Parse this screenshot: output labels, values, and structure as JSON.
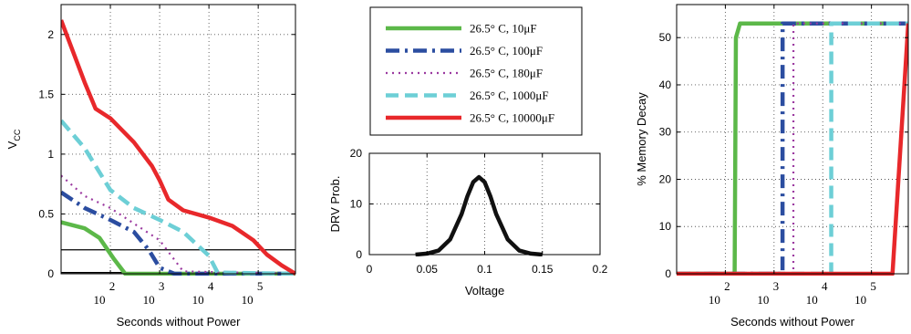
{
  "chart_data": [
    {
      "type": "line",
      "panel": "left",
      "xlabel": "Seconds without Power",
      "ylabel": "V",
      "ylabel_sub": "CC",
      "xscale": "log",
      "xlim": [
        10,
        570000
      ],
      "ylim": [
        0,
        2.25
      ],
      "x_tick_values": [
        100,
        1000,
        10000,
        100000
      ],
      "x_tick_base": "10",
      "x_tick_exponents": [
        "2",
        "3",
        "4",
        "5"
      ],
      "y_ticks": [
        0,
        0.5,
        1,
        1.5,
        2
      ],
      "y_tick_labels": [
        "0",
        "0.5",
        "1",
        "1.5",
        "2"
      ],
      "grid": true,
      "reference_lines": [
        0.2,
        0.01
      ],
      "series": [
        {
          "name": "26.5° C, 10μF",
          "color": "#5cb849",
          "dash": "solid",
          "x": [
            10,
            30,
            60,
            120,
            200,
            300,
            570000
          ],
          "y": [
            0.43,
            0.38,
            0.3,
            0.12,
            0.0,
            0.0,
            0.0
          ]
        },
        {
          "name": "26.5° C, 100μF",
          "color": "#2b4da0",
          "dash": "dashdot",
          "x": [
            10,
            30,
            100,
            300,
            600,
            1000,
            2000,
            570000
          ],
          "y": [
            0.68,
            0.55,
            0.45,
            0.35,
            0.2,
            0.05,
            0.0,
            0.0
          ]
        },
        {
          "name": "26.5° C, 180μF",
          "color": "#9b3aa0",
          "dash": "dotted",
          "x": [
            10,
            30,
            100,
            300,
            1000,
            3000,
            570000
          ],
          "y": [
            0.82,
            0.65,
            0.55,
            0.42,
            0.28,
            0.02,
            0.0
          ]
        },
        {
          "name": "26.5° C, 1000μF",
          "color": "#6dcfd6",
          "dash": "dashed",
          "x": [
            10,
            30,
            100,
            300,
            1000,
            3000,
            10000,
            15000,
            570000
          ],
          "y": [
            1.28,
            1.05,
            0.7,
            0.55,
            0.45,
            0.35,
            0.15,
            0.01,
            0.0
          ]
        },
        {
          "name": "26.5° C, 10000μF",
          "color": "#e8282b",
          "dash": "solid",
          "x": [
            10,
            30,
            50,
            100,
            300,
            700,
            1000,
            1500,
            3000,
            10000,
            30000,
            80000,
            150000,
            300000,
            570000
          ],
          "y": [
            2.12,
            1.6,
            1.38,
            1.3,
            1.1,
            0.9,
            0.78,
            0.62,
            0.53,
            0.47,
            0.4,
            0.28,
            0.16,
            0.07,
            0.0
          ]
        }
      ]
    },
    {
      "type": "line",
      "panel": "middle",
      "xlabel": "Voltage",
      "ylabel": "DRV Prob.",
      "xlim": [
        0,
        0.2
      ],
      "ylim": [
        0,
        20
      ],
      "x_ticks": [
        0,
        0.05,
        0.1,
        0.15,
        0.2
      ],
      "x_tick_labels": [
        "0",
        "0.05",
        "0.1",
        "0.15",
        "0.2"
      ],
      "y_ticks": [
        0,
        10,
        20
      ],
      "y_tick_labels": [
        "0",
        "10",
        "20"
      ],
      "grid": true,
      "series": [
        {
          "color": "#111111",
          "dash": "solid",
          "x": [
            0.04,
            0.05,
            0.06,
            0.07,
            0.08,
            0.085,
            0.09,
            0.095,
            0.1,
            0.105,
            0.11,
            0.12,
            0.13,
            0.14,
            0.15
          ],
          "y": [
            0.0,
            0.2,
            0.8,
            3.0,
            8.0,
            11.5,
            14.3,
            15.3,
            14.3,
            11.5,
            8.0,
            3.0,
            0.8,
            0.2,
            0.0
          ]
        }
      ]
    },
    {
      "type": "line",
      "panel": "right",
      "xlabel": "Seconds without Power",
      "ylabel": "% Memory Decay",
      "xscale": "log",
      "xlim": [
        10,
        570000
      ],
      "ylim": [
        0,
        57
      ],
      "x_tick_values": [
        100,
        1000,
        10000,
        100000
      ],
      "x_tick_base": "10",
      "x_tick_exponents": [
        "2",
        "3",
        "4",
        "5"
      ],
      "y_ticks": [
        0,
        10,
        20,
        30,
        40,
        50
      ],
      "y_tick_labels": [
        "0",
        "10",
        "20",
        "30",
        "40",
        "50"
      ],
      "grid": true,
      "series": [
        {
          "name": "26.5° C, 10μF",
          "color": "#5cb849",
          "dash": "solid",
          "x": [
            10,
            155,
            165,
            200,
            570000
          ],
          "y": [
            0,
            0,
            50,
            53,
            53
          ]
        },
        {
          "name": "26.5° C, 100μF",
          "color": "#2b4da0",
          "dash": "dashdot",
          "x": [
            10,
            1490,
            1500,
            570000
          ],
          "y": [
            0,
            0,
            53,
            53
          ]
        },
        {
          "name": "26.5° C, 180μF",
          "color": "#9b3aa0",
          "dash": "dotted",
          "x": [
            10,
            2490,
            2500,
            570000
          ],
          "y": [
            0,
            0,
            53,
            53
          ]
        },
        {
          "name": "26.5° C, 1000μF",
          "color": "#6dcfd6",
          "dash": "dashed",
          "x": [
            10,
            14900,
            15000,
            570000
          ],
          "y": [
            0,
            0,
            53,
            53
          ]
        },
        {
          "name": "26.5° C, 10000μF",
          "color": "#e8282b",
          "dash": "solid",
          "x": [
            10,
            270000,
            570000
          ],
          "y": [
            0,
            0,
            53
          ]
        }
      ]
    }
  ],
  "legend": {
    "entries": [
      {
        "label": "26.5° C, 10μF",
        "color": "#5cb849",
        "dash": "solid"
      },
      {
        "label": "26.5° C, 100μF",
        "color": "#2b4da0",
        "dash": "dashdot"
      },
      {
        "label": "26.5° C, 180μF",
        "color": "#9b3aa0",
        "dash": "dotted"
      },
      {
        "label": "26.5° C, 1000μF",
        "color": "#6dcfd6",
        "dash": "dashed"
      },
      {
        "label": "26.5° C, 10000μF",
        "color": "#e8282b",
        "dash": "solid"
      }
    ]
  }
}
